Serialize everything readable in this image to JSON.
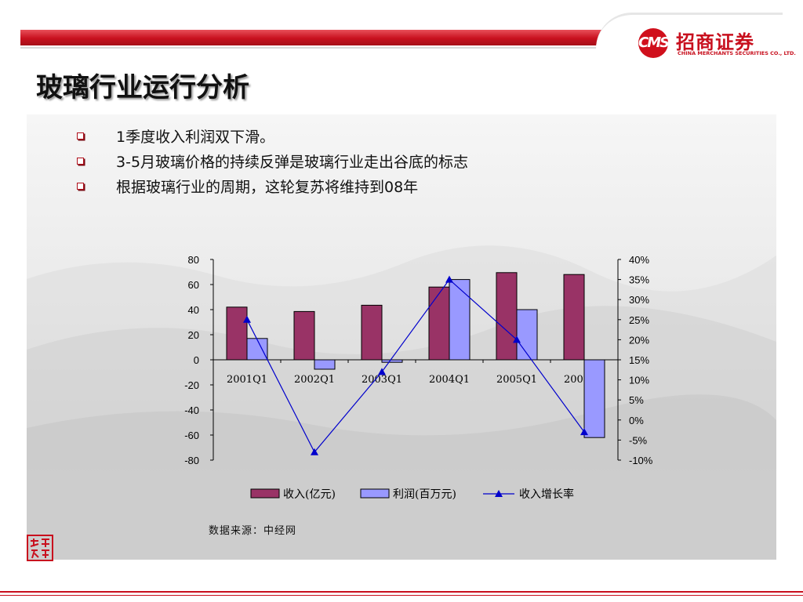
{
  "header": {
    "brand_name": "招商证券",
    "brand_sub": "CHINA MERCHANTS SECURITIES CO., LTD.",
    "emblem_text": "CMS",
    "accent_color": "#c8101e"
  },
  "page_title": "玻璃行业运行分析",
  "bullets": [
    "1季度收入利润双下滑。",
    "3-5月玻璃价格的持续反弹是玻璃行业走出谷底的标志",
    "根据玻璃行业的周期，这轮复苏将维持到08年"
  ],
  "source_note": "数据来源：中经网",
  "seal_text": "致行 远",
  "chart_data": {
    "type": "bar",
    "categories": [
      "2001Q1",
      "2002Q1",
      "2003Q1",
      "2004Q1",
      "2005Q1",
      "2006Q1"
    ],
    "series": [
      {
        "name": "收入(亿元)",
        "type": "bar",
        "axis": "left",
        "color": "#993366",
        "values": [
          42,
          38.5,
          43.5,
          58,
          69.5,
          68
        ]
      },
      {
        "name": "利润(百万元)",
        "type": "bar",
        "axis": "left",
        "color": "#9999ff",
        "values": [
          17,
          -7.5,
          -2,
          64,
          40,
          -62
        ]
      },
      {
        "name": "收入增长率",
        "type": "line",
        "axis": "right",
        "color": "#0000cc",
        "values": [
          0.25,
          -0.08,
          0.12,
          0.35,
          0.2,
          -0.03
        ]
      }
    ],
    "y_left": {
      "ylim": [
        -80,
        80
      ],
      "ticks": [
        "80",
        "60",
        "40",
        "20",
        "0",
        "-20",
        "-40",
        "-60",
        "-80"
      ]
    },
    "y_right": {
      "ylim": [
        -0.1,
        0.4
      ],
      "ticks": [
        "40%",
        "35%",
        "30%",
        "25%",
        "20%",
        "15%",
        "10%",
        "5%",
        "0%",
        "-5%",
        "-10%"
      ]
    },
    "legend_position": "bottom",
    "grid": false
  }
}
